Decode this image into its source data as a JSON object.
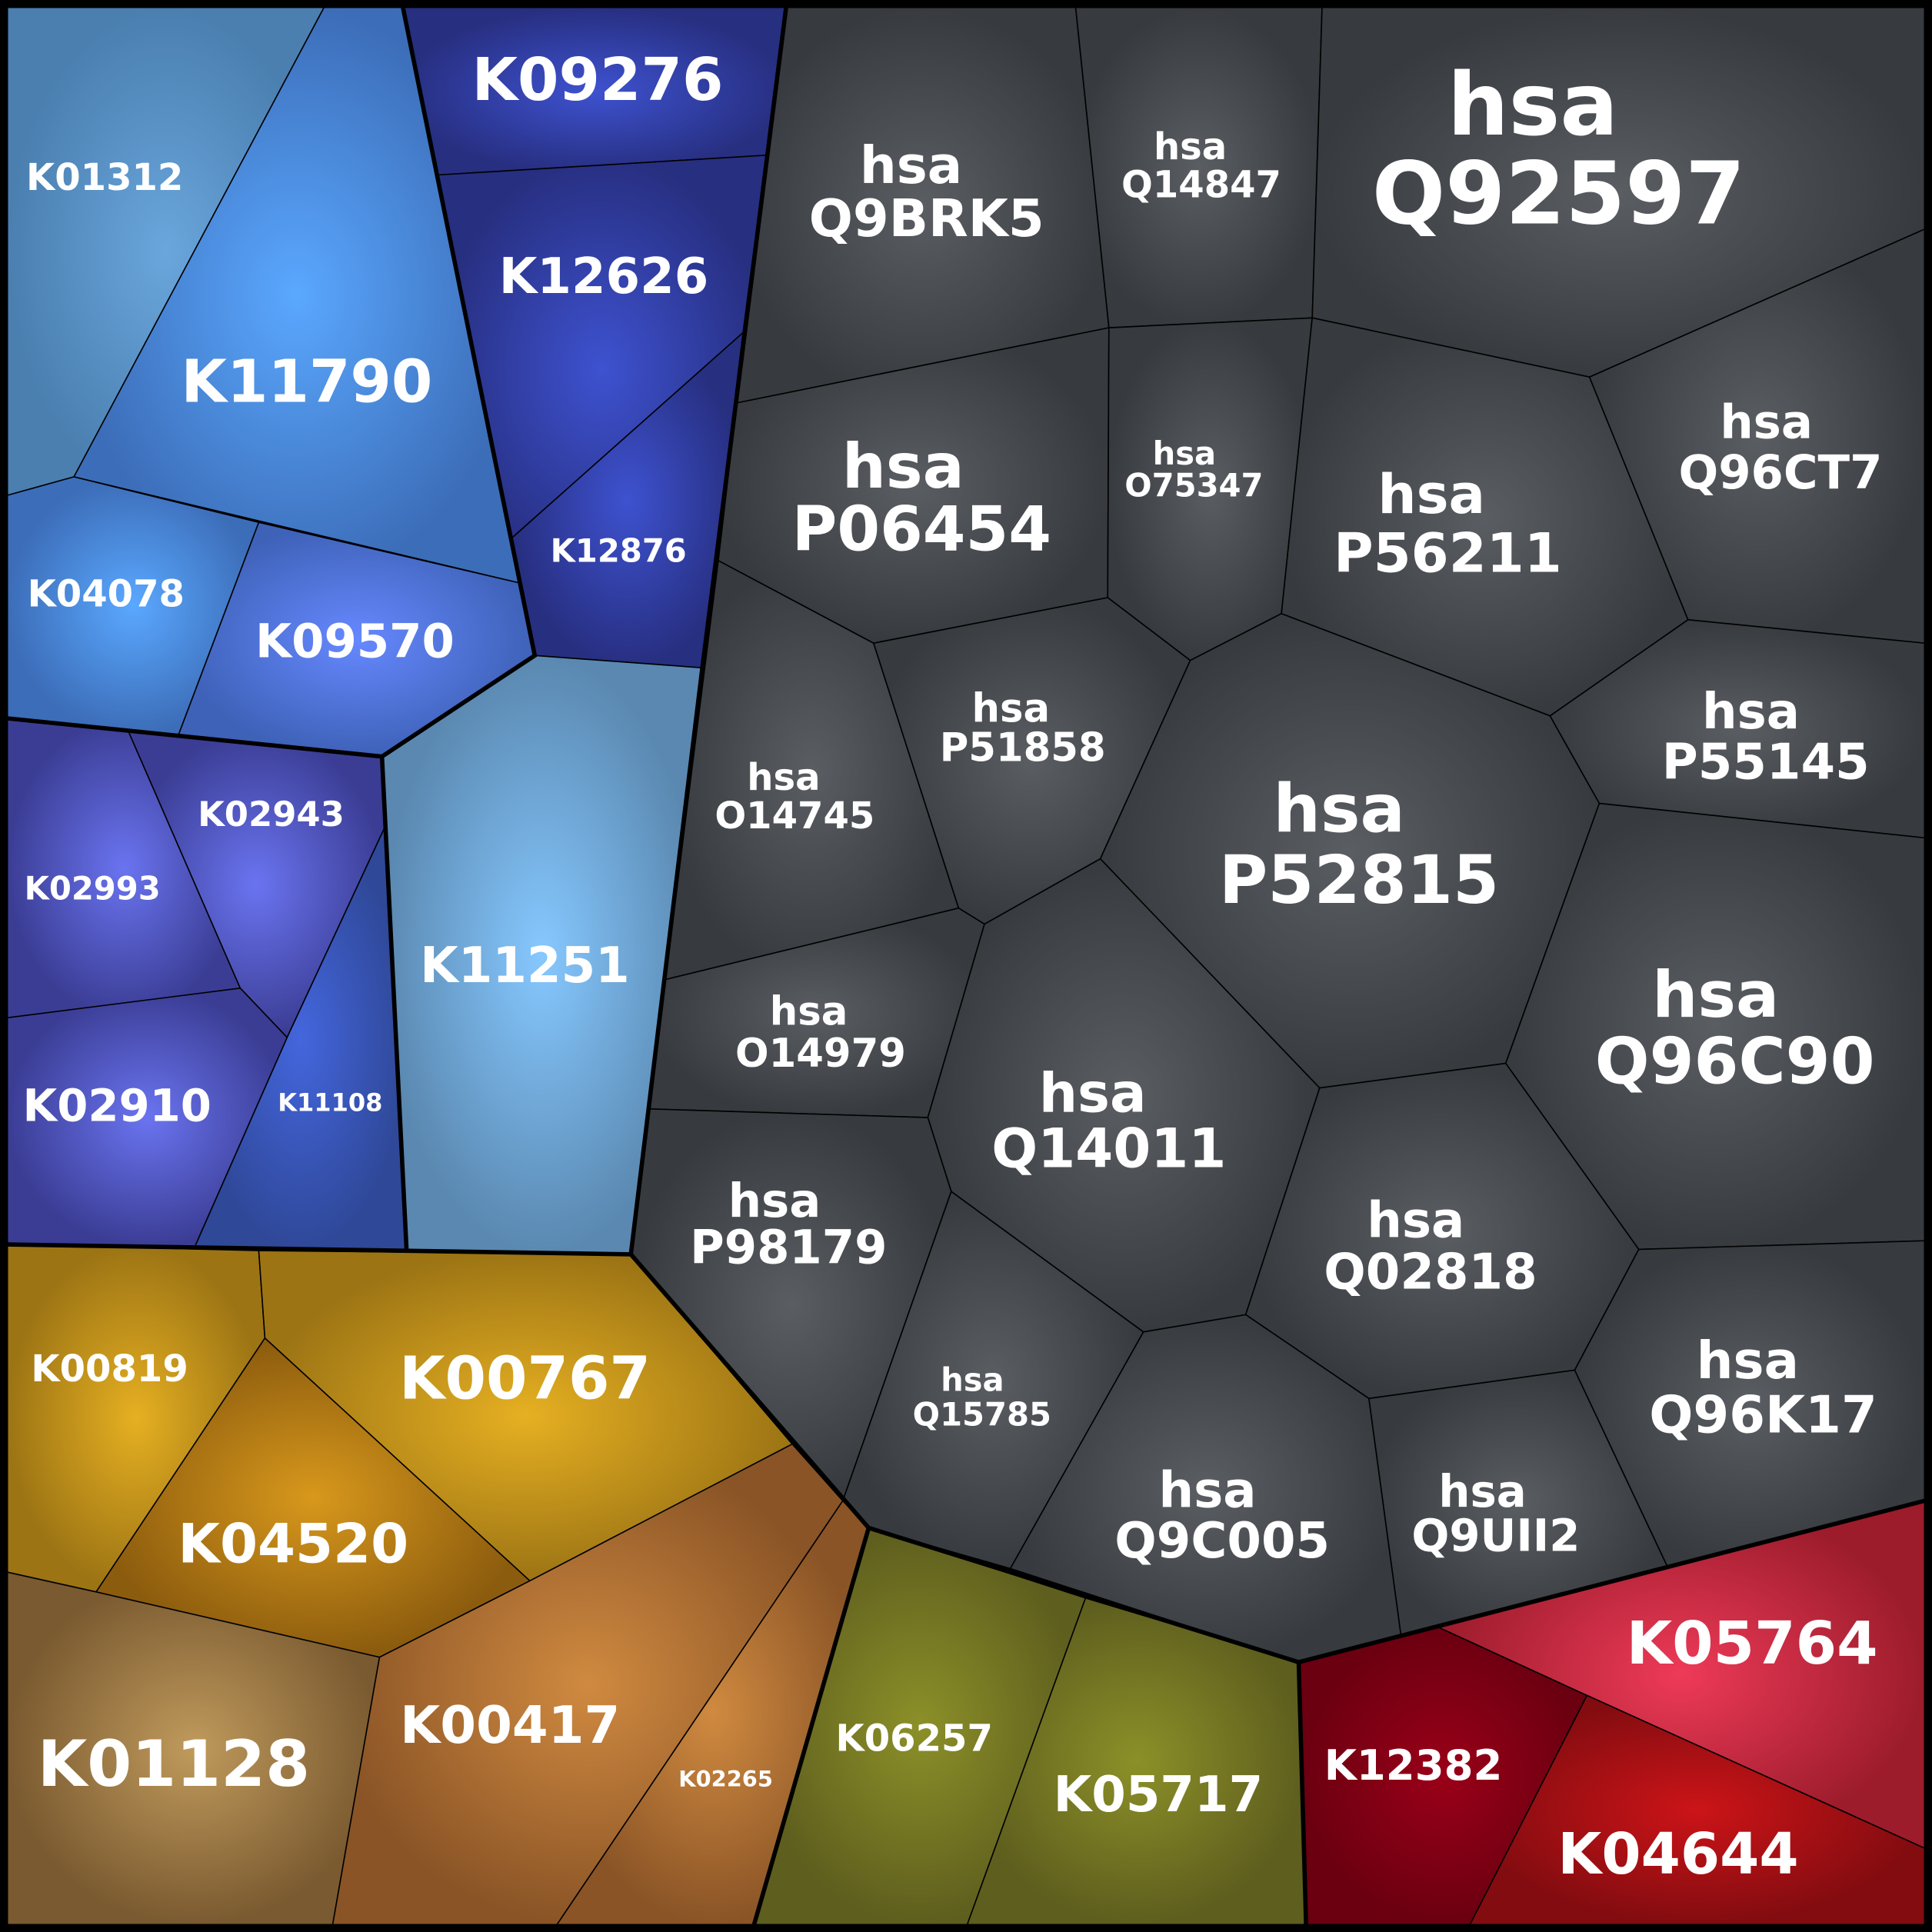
{
  "cells": [
    {
      "label": "K01312"
    },
    {
      "label": "K11790"
    },
    {
      "label": "K09276"
    },
    {
      "label": "K12626"
    },
    {
      "label": "K12876"
    },
    {
      "label": "K04078"
    },
    {
      "label": "K09570"
    },
    {
      "label": "K11251"
    },
    {
      "label": "K02993"
    },
    {
      "label": "K02943"
    },
    {
      "label": "K11108"
    },
    {
      "label": "K02910"
    },
    {
      "label": "K00819"
    },
    {
      "label": "K00767"
    },
    {
      "label": "K04520"
    },
    {
      "label": "K01128"
    },
    {
      "label": "K00417"
    },
    {
      "label": "K02265"
    },
    {
      "label": "K06257"
    },
    {
      "label": "K05717"
    },
    {
      "label": "K12382"
    },
    {
      "label": "K05764"
    },
    {
      "label": "K04644"
    },
    {
      "lines": [
        "hsa",
        "Q9BRK5"
      ]
    },
    {
      "lines": [
        "hsa",
        "Q14847"
      ]
    },
    {
      "lines": [
        "hsa",
        "Q92597"
      ]
    },
    {
      "lines": [
        "hsa",
        "P06454"
      ]
    },
    {
      "lines": [
        "hsa",
        "O75347"
      ]
    },
    {
      "lines": [
        "hsa",
        "P56211"
      ]
    },
    {
      "lines": [
        "hsa",
        "Q96CT7"
      ]
    },
    {
      "lines": [
        "hsa",
        "O14745"
      ]
    },
    {
      "lines": [
        "hsa",
        "P51858"
      ]
    },
    {
      "lines": [
        "hsa",
        "P52815"
      ]
    },
    {
      "lines": [
        "hsa",
        "P55145"
      ]
    },
    {
      "lines": [
        "hsa",
        "O14979"
      ]
    },
    {
      "lines": [
        "hsa",
        "Q14011"
      ]
    },
    {
      "lines": [
        "hsa",
        "Q96C90"
      ]
    },
    {
      "lines": [
        "hsa",
        "P98179"
      ]
    },
    {
      "lines": [
        "hsa",
        "Q15785"
      ]
    },
    {
      "lines": [
        "hsa",
        "Q02818"
      ]
    },
    {
      "lines": [
        "hsa",
        "Q96K17"
      ]
    },
    {
      "lines": [
        "hsa",
        "Q9C005"
      ]
    },
    {
      "lines": [
        "hsa",
        "Q9UII2"
      ]
    }
  ]
}
